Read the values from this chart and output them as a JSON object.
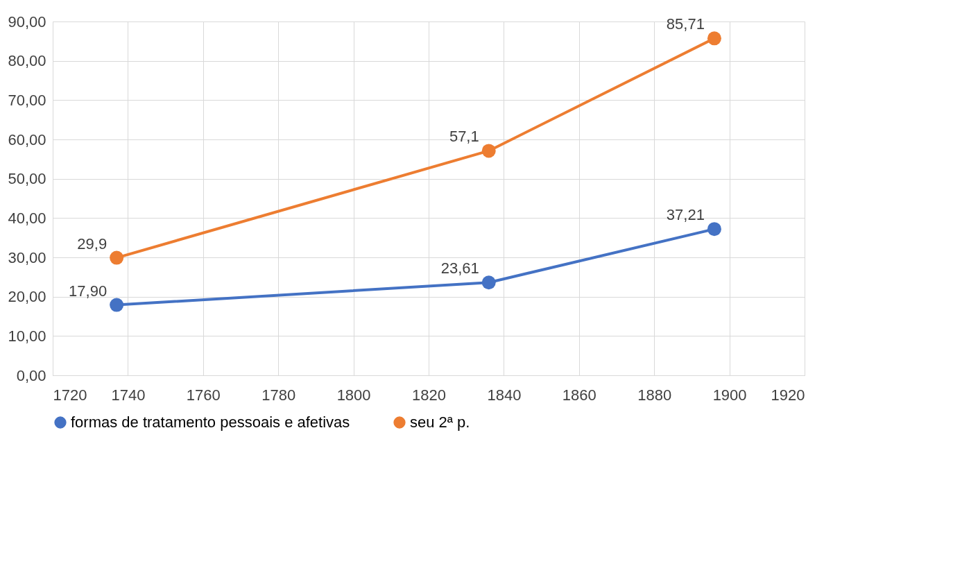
{
  "chart_data": {
    "type": "line",
    "x": [
      1737,
      1836,
      1896
    ],
    "series": [
      {
        "name": "formas de tratamento pessoais e afetivas",
        "color": "#4472c4",
        "values": [
          17.9,
          23.61,
          37.21
        ],
        "value_labels": [
          "17,90",
          "23,61",
          "37,21"
        ]
      },
      {
        "name": "seu 2ª p.",
        "color": "#ed7d31",
        "values": [
          29.9,
          57.1,
          85.71
        ],
        "value_labels": [
          "29,9",
          "57,1",
          "85,71"
        ]
      }
    ],
    "xlim": [
      1720,
      1920
    ],
    "xticks": [
      1720,
      1740,
      1760,
      1780,
      1800,
      1820,
      1840,
      1860,
      1880,
      1900,
      1920
    ],
    "ylim": [
      0,
      90
    ],
    "yticks": [
      {
        "value": 0,
        "label": "0,00"
      },
      {
        "value": 10,
        "label": "10,00"
      },
      {
        "value": 20,
        "label": "20,00"
      },
      {
        "value": 30,
        "label": "30,00"
      },
      {
        "value": 40,
        "label": "40,00"
      },
      {
        "value": 50,
        "label": "50,00"
      },
      {
        "value": 60,
        "label": "60,00"
      },
      {
        "value": 70,
        "label": "70,00"
      },
      {
        "value": 80,
        "label": "80,00"
      },
      {
        "value": 90,
        "label": "90,00"
      }
    ],
    "grid": true,
    "legend": "bottom",
    "marker": "circle",
    "line_style": "solid"
  }
}
